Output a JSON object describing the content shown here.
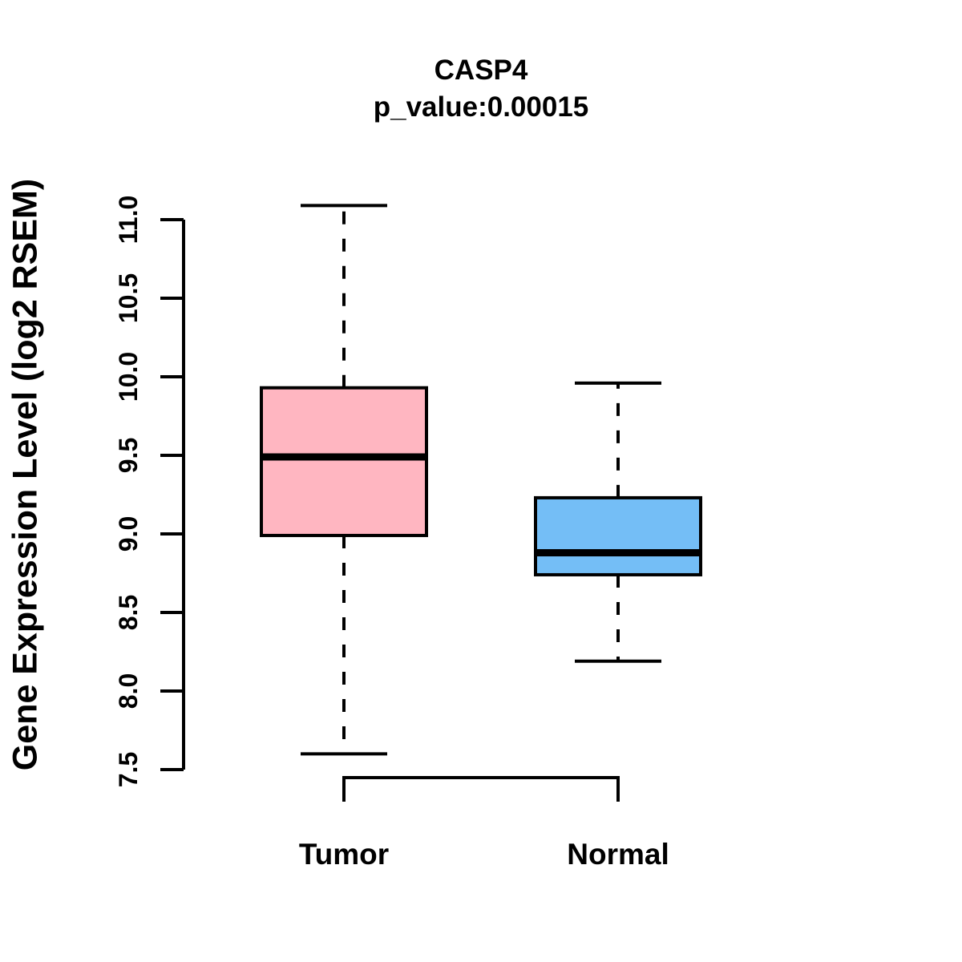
{
  "chart_data": {
    "type": "box",
    "title": "CASP4",
    "subtitle": "p_value:0.00015",
    "ylabel": "Gene Expression Level (log2 RSEM)",
    "xlabel": "",
    "categories": [
      "Tumor",
      "Normal"
    ],
    "ylim": [
      7.5,
      11.0
    ],
    "ytick_step": 0.5,
    "ytick_labels": [
      "7.5",
      "8.0",
      "8.5",
      "9.0",
      "9.5",
      "10.0",
      "10.5",
      "11.0"
    ],
    "grid": false,
    "legend": "none",
    "series": [
      {
        "name": "Tumor",
        "color": "#FFB6C1",
        "whisker_low": 7.6,
        "q1": 8.99,
        "median": 9.49,
        "q3": 9.93,
        "whisker_high": 11.09
      },
      {
        "name": "Normal",
        "color": "#74BEF6",
        "whisker_low": 8.19,
        "q1": 8.74,
        "median": 8.88,
        "q3": 9.23,
        "whisker_high": 9.96
      }
    ]
  },
  "colors": {
    "line": "#000000",
    "background": "#FFFFFF",
    "tumor_box": "#FFB6C1",
    "normal_box": "#74BEF6"
  }
}
